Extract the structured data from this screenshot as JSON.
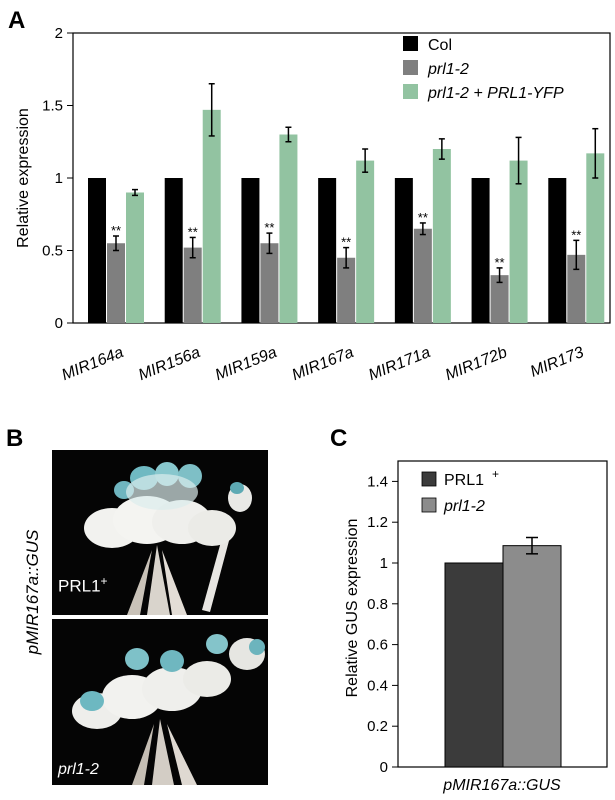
{
  "panels": {
    "A": "A",
    "B": "B",
    "C": "C"
  },
  "photo_panel": {
    "side_label": "pMIR167a::GUS",
    "top_label": "PRL1",
    "top_label_sup": "+",
    "bottom_label": "prl1-2"
  },
  "chart_data": [
    {
      "type": "bar",
      "ylabel": "Relative expression",
      "xlabel": "",
      "ylim": [
        0,
        2
      ],
      "yticks": [
        "0",
        "0.5",
        "1",
        "1.5",
        "2"
      ],
      "ytick_values": [
        0,
        0.5,
        1,
        1.5,
        2
      ],
      "categories": [
        "MIR164a",
        "MIR156a",
        "MIR159a",
        "MIR167a",
        "MIR171a",
        "MIR172b",
        "MIR173"
      ],
      "series": [
        {
          "name": "Col",
          "color": "#000000",
          "values": [
            1,
            1,
            1,
            1,
            1,
            1,
            1
          ],
          "errors": [
            0,
            0,
            0,
            0,
            0,
            0,
            0
          ]
        },
        {
          "name": "prl1-2",
          "color": "#7f7f7f",
          "values": [
            0.55,
            0.52,
            0.55,
            0.45,
            0.65,
            0.33,
            0.47
          ],
          "errors": [
            0.05,
            0.07,
            0.07,
            0.07,
            0.04,
            0.05,
            0.1
          ]
        },
        {
          "name": "prl1-2 + PRL1-YFP",
          "color": "#92c3a1",
          "values": [
            0.9,
            1.47,
            1.3,
            1.12,
            1.2,
            1.12,
            1.17
          ],
          "errors": [
            0.02,
            0.18,
            0.05,
            0.08,
            0.07,
            0.16,
            0.17
          ]
        }
      ],
      "annotation": "**",
      "legend_position": "top-right",
      "grid": false
    },
    {
      "type": "bar",
      "ylabel": "Relative GUS expression",
      "xlabel": "pMIR167a::GUS",
      "ylim": [
        0,
        1.5
      ],
      "yticks": [
        "0",
        "0.2",
        "0.4",
        "0.6",
        "0.8",
        "1",
        "1.2",
        "1.4"
      ],
      "ytick_values": [
        0,
        0.2,
        0.4,
        0.6,
        0.8,
        1,
        1.2,
        1.4
      ],
      "series": [
        {
          "name": "PRL1",
          "name_sup": "+",
          "color": "#3b3b3b",
          "value": 1.0,
          "error": 0
        },
        {
          "name": "prl1-2",
          "color": "#8c8c8c",
          "value": 1.085,
          "error": 0.04
        }
      ],
      "legend_position": "top-left",
      "grid": false
    }
  ]
}
